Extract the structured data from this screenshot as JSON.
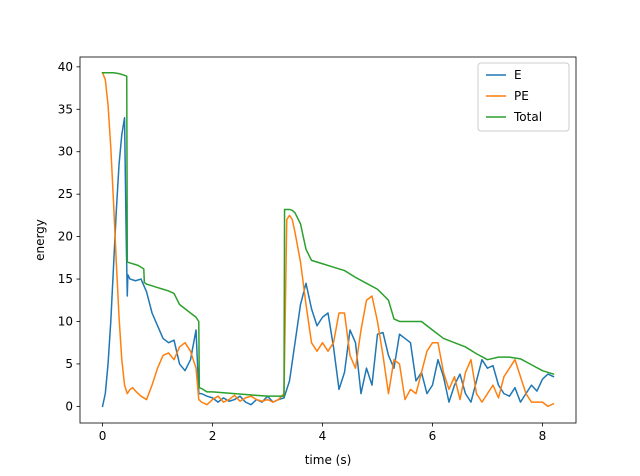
{
  "chart_data": {
    "type": "line",
    "xlabel": "time (s)",
    "ylabel": "energy",
    "xlim": [
      -0.41,
      8.61
    ],
    "ylim": [
      -1.96,
      41.16
    ],
    "xticks": [
      0,
      2,
      4,
      6,
      8
    ],
    "yticks": [
      0,
      5,
      10,
      15,
      20,
      25,
      30,
      35,
      40
    ],
    "grid": false,
    "legend_position": "top-right",
    "series": [
      {
        "name": "E",
        "color": "#1f77b4",
        "x": [
          0.0,
          0.05,
          0.1,
          0.15,
          0.2,
          0.25,
          0.3,
          0.35,
          0.4,
          0.43,
          0.45,
          0.46,
          0.5,
          0.6,
          0.7,
          0.8,
          0.9,
          1.0,
          1.1,
          1.2,
          1.3,
          1.4,
          1.5,
          1.6,
          1.7,
          1.75,
          1.8,
          1.9,
          2.0,
          2.1,
          2.2,
          2.3,
          2.4,
          2.5,
          2.6,
          2.7,
          2.8,
          2.9,
          3.0,
          3.1,
          3.2,
          3.3,
          3.4,
          3.5,
          3.6,
          3.7,
          3.8,
          3.9,
          4.0,
          4.1,
          4.2,
          4.3,
          4.4,
          4.5,
          4.6,
          4.7,
          4.8,
          4.9,
          5.0,
          5.1,
          5.2,
          5.3,
          5.4,
          5.5,
          5.6,
          5.7,
          5.8,
          5.9,
          6.0,
          6.1,
          6.2,
          6.3,
          6.4,
          6.5,
          6.6,
          6.7,
          6.8,
          6.9,
          7.0,
          7.1,
          7.2,
          7.3,
          7.4,
          7.5,
          7.6,
          7.7,
          7.8,
          7.9,
          8.0,
          8.1,
          8.2
        ],
        "y": [
          0.0,
          1.5,
          5.0,
          10.0,
          16.5,
          23.0,
          28.5,
          32.0,
          34.0,
          20.0,
          13.0,
          15.5,
          15.0,
          14.8,
          15.0,
          13.5,
          11.0,
          9.5,
          8.0,
          7.5,
          7.8,
          5.0,
          4.2,
          5.5,
          9.0,
          1.5,
          1.5,
          1.2,
          1.0,
          0.5,
          1.0,
          0.6,
          0.8,
          1.2,
          0.5,
          0.2,
          0.8,
          0.5,
          1.2,
          0.5,
          0.8,
          1.0,
          3.0,
          7.5,
          12.0,
          14.5,
          11.5,
          9.5,
          10.5,
          11.0,
          7.0,
          2.0,
          4.0,
          9.0,
          7.5,
          1.5,
          4.5,
          2.5,
          8.5,
          8.7,
          6.0,
          4.5,
          8.5,
          8.0,
          7.5,
          3.0,
          4.0,
          1.5,
          2.5,
          5.5,
          3.5,
          0.5,
          2.5,
          3.8,
          1.5,
          0.5,
          3.0,
          5.5,
          4.5,
          4.8,
          2.5,
          1.5,
          1.2,
          2.2,
          0.5,
          1.5,
          2.5,
          1.8,
          3.2,
          3.8,
          3.5
        ]
      },
      {
        "name": "PE",
        "color": "#ff7f0e",
        "x": [
          0.0,
          0.05,
          0.1,
          0.15,
          0.2,
          0.25,
          0.3,
          0.35,
          0.4,
          0.45,
          0.5,
          0.55,
          0.6,
          0.7,
          0.8,
          0.9,
          1.0,
          1.1,
          1.2,
          1.3,
          1.4,
          1.5,
          1.6,
          1.7,
          1.75,
          1.8,
          1.9,
          2.0,
          2.1,
          2.2,
          2.3,
          2.4,
          2.5,
          2.6,
          2.7,
          2.8,
          2.9,
          3.0,
          3.1,
          3.2,
          3.3,
          3.35,
          3.4,
          3.45,
          3.5,
          3.6,
          3.7,
          3.8,
          3.9,
          4.0,
          4.1,
          4.2,
          4.3,
          4.4,
          4.5,
          4.6,
          4.7,
          4.8,
          4.9,
          5.0,
          5.1,
          5.2,
          5.3,
          5.4,
          5.5,
          5.6,
          5.7,
          5.8,
          5.9,
          6.0,
          6.1,
          6.2,
          6.3,
          6.4,
          6.5,
          6.6,
          6.7,
          6.8,
          6.9,
          7.0,
          7.1,
          7.2,
          7.3,
          7.4,
          7.5,
          7.6,
          7.7,
          7.8,
          7.9,
          8.0,
          8.1,
          8.2
        ],
        "y": [
          39.3,
          38.5,
          35.5,
          30.5,
          24.0,
          17.0,
          10.5,
          5.5,
          2.5,
          1.5,
          2.0,
          2.2,
          1.8,
          1.2,
          0.8,
          2.5,
          4.5,
          6.0,
          6.3,
          5.5,
          7.0,
          7.5,
          6.5,
          4.5,
          0.8,
          0.5,
          0.2,
          0.8,
          1.2,
          0.5,
          0.8,
          1.3,
          0.6,
          1.0,
          1.2,
          0.8,
          0.6,
          0.8,
          0.5,
          0.8,
          1.5,
          22.0,
          22.5,
          22.0,
          20.5,
          17.0,
          12.0,
          7.5,
          6.5,
          7.5,
          6.5,
          7.5,
          11.0,
          11.0,
          6.0,
          4.5,
          9.0,
          12.5,
          13.0,
          10.0,
          6.0,
          1.5,
          5.5,
          5.0,
          0.8,
          2.0,
          1.5,
          4.0,
          6.5,
          7.5,
          7.5,
          4.0,
          2.0,
          3.5,
          0.8,
          4.0,
          5.5,
          1.5,
          0.5,
          1.5,
          2.5,
          1.0,
          3.5,
          4.5,
          5.5,
          3.5,
          1.5,
          0.5,
          0.5,
          0.5,
          0.0,
          0.3
        ]
      },
      {
        "name": "Total",
        "color": "#2ca02c",
        "x": [
          0.0,
          0.1,
          0.2,
          0.3,
          0.4,
          0.44,
          0.45,
          0.5,
          0.6,
          0.65,
          0.75,
          0.76,
          0.8,
          0.9,
          1.0,
          1.1,
          1.2,
          1.3,
          1.4,
          1.5,
          1.6,
          1.7,
          1.75,
          1.76,
          1.8,
          1.9,
          2.0,
          2.2,
          2.4,
          2.6,
          2.8,
          3.0,
          3.2,
          3.3,
          3.31,
          3.4,
          3.45,
          3.5,
          3.6,
          3.7,
          3.8,
          4.0,
          4.2,
          4.4,
          4.6,
          4.8,
          5.0,
          5.2,
          5.3,
          5.4,
          5.6,
          5.8,
          6.0,
          6.2,
          6.4,
          6.6,
          6.8,
          7.0,
          7.2,
          7.4,
          7.6,
          7.8,
          8.0,
          8.2
        ],
        "y": [
          39.3,
          39.3,
          39.3,
          39.2,
          39.0,
          38.9,
          17.0,
          16.9,
          16.7,
          16.6,
          16.2,
          14.6,
          14.4,
          14.2,
          14.0,
          13.8,
          13.6,
          13.3,
          12.0,
          11.5,
          11.0,
          10.5,
          10.0,
          2.2,
          2.1,
          1.7,
          1.7,
          1.6,
          1.5,
          1.4,
          1.3,
          1.2,
          1.2,
          1.2,
          23.2,
          23.2,
          23.1,
          22.8,
          21.5,
          18.5,
          17.2,
          16.8,
          16.4,
          16.0,
          15.2,
          14.5,
          13.8,
          12.5,
          10.3,
          10.0,
          10.0,
          10.0,
          9.0,
          8.0,
          7.5,
          7.0,
          6.2,
          5.5,
          5.8,
          5.8,
          5.6,
          4.9,
          4.2,
          3.8
        ]
      }
    ]
  }
}
